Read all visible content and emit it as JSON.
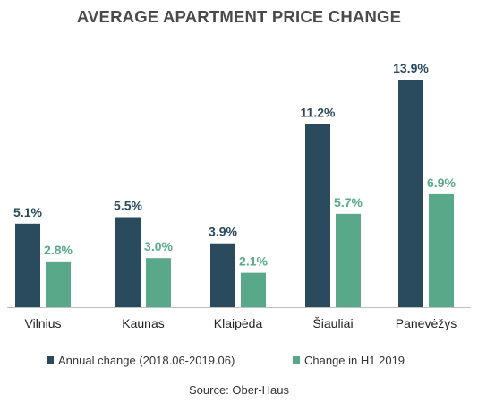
{
  "chart_data": {
    "type": "bar",
    "title": "AVERAGE APARTMENT PRICE CHANGE",
    "source": "Source: Ober-Haus",
    "categories": [
      "Vilnius",
      "Kaunas",
      "Klaipėda",
      "Šiauliai",
      "Panevėžys"
    ],
    "series": [
      {
        "name": "Annual change (2018.06-2019.06)",
        "color": "#2a4a5e",
        "values": [
          5.1,
          5.5,
          3.9,
          11.2,
          13.9
        ],
        "labels": [
          "5.1%",
          "5.5%",
          "3.9%",
          "11.2%",
          "13.9%"
        ]
      },
      {
        "name": "Change in H1 2019",
        "color": "#5aa88a",
        "values": [
          2.8,
          3.0,
          2.1,
          5.7,
          6.9
        ],
        "labels": [
          "2.8%",
          "3.0%",
          "2.1%",
          "5.7%",
          "6.9%"
        ]
      }
    ],
    "ylim": [
      0,
      13.9
    ],
    "grid": false,
    "legend_position": "bottom"
  }
}
